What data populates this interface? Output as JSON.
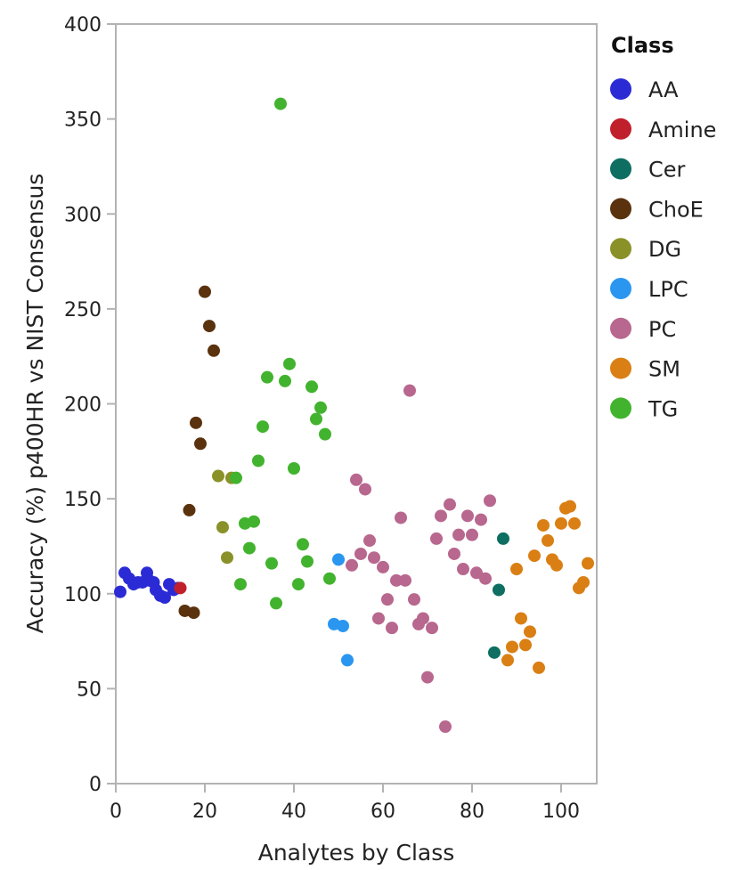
{
  "chart_data": {
    "type": "scatter",
    "title": "",
    "xlabel": "Analytes by Class",
    "ylabel": "Accuracy (%) p400HR vs NIST Consensus",
    "xlim": [
      0,
      108
    ],
    "ylim": [
      0,
      400
    ],
    "xticks": [
      0,
      20,
      40,
      60,
      80,
      100
    ],
    "yticks": [
      0,
      50,
      100,
      150,
      200,
      250,
      300,
      350,
      400
    ],
    "grid": false,
    "legend": {
      "title": "Class",
      "position": "right"
    },
    "series": [
      {
        "name": "AA",
        "color": "#2B2BD6",
        "points": [
          [
            1,
            101
          ],
          [
            2,
            111
          ],
          [
            3,
            108
          ],
          [
            4,
            105
          ],
          [
            5,
            106
          ],
          [
            6,
            106
          ],
          [
            7,
            111
          ],
          [
            7.5,
            107
          ],
          [
            8.5,
            106
          ],
          [
            9,
            102
          ],
          [
            10,
            99
          ],
          [
            11,
            98
          ],
          [
            12,
            105
          ],
          [
            13,
            102
          ],
          [
            14,
            103
          ]
        ]
      },
      {
        "name": "Amine",
        "color": "#C0202C",
        "points": [
          [
            14.5,
            103
          ]
        ]
      },
      {
        "name": "Cer",
        "color": "#0E6E62",
        "points": [
          [
            85,
            69
          ],
          [
            86,
            102
          ],
          [
            87,
            129
          ]
        ]
      },
      {
        "name": "ChoE",
        "color": "#5A320E",
        "points": [
          [
            15.5,
            91
          ],
          [
            16.5,
            144
          ],
          [
            17.5,
            90
          ],
          [
            18,
            190
          ],
          [
            19,
            179
          ],
          [
            20,
            259
          ],
          [
            21,
            241
          ],
          [
            22,
            228
          ]
        ]
      },
      {
        "name": "DG",
        "color": "#8A9128",
        "points": [
          [
            23,
            162
          ],
          [
            24,
            135
          ],
          [
            25,
            119
          ],
          [
            26,
            161
          ]
        ]
      },
      {
        "name": "LPC",
        "color": "#2A96F0",
        "points": [
          [
            49,
            84
          ],
          [
            50,
            118
          ],
          [
            51,
            83
          ],
          [
            52,
            65
          ]
        ]
      },
      {
        "name": "PC",
        "color": "#B8678E",
        "points": [
          [
            53,
            115
          ],
          [
            54,
            160
          ],
          [
            55,
            121
          ],
          [
            56,
            155
          ],
          [
            57,
            128
          ],
          [
            58,
            119
          ],
          [
            59,
            87
          ],
          [
            60,
            114
          ],
          [
            61,
            97
          ],
          [
            62,
            82
          ],
          [
            63,
            107
          ],
          [
            64,
            140
          ],
          [
            65,
            107
          ],
          [
            66,
            207
          ],
          [
            67,
            97
          ],
          [
            68,
            84
          ],
          [
            69,
            87
          ],
          [
            70,
            56
          ],
          [
            71,
            82
          ],
          [
            72,
            129
          ],
          [
            73,
            141
          ],
          [
            74,
            30
          ],
          [
            75,
            147
          ],
          [
            76,
            121
          ],
          [
            77,
            131
          ],
          [
            78,
            113
          ],
          [
            79,
            141
          ],
          [
            80,
            131
          ],
          [
            81,
            111
          ],
          [
            82,
            139
          ],
          [
            83,
            108
          ],
          [
            84,
            149
          ]
        ]
      },
      {
        "name": "SM",
        "color": "#DA7F14",
        "points": [
          [
            88,
            65
          ],
          [
            89,
            72
          ],
          [
            90,
            113
          ],
          [
            91,
            87
          ],
          [
            92,
            73
          ],
          [
            93,
            80
          ],
          [
            94,
            120
          ],
          [
            95,
            61
          ],
          [
            96,
            136
          ],
          [
            97,
            128
          ],
          [
            98,
            118
          ],
          [
            99,
            115
          ],
          [
            100,
            137
          ],
          [
            101,
            145
          ],
          [
            102,
            146
          ],
          [
            103,
            137
          ],
          [
            104,
            103
          ],
          [
            105,
            106
          ],
          [
            106,
            116
          ]
        ]
      },
      {
        "name": "TG",
        "color": "#42B32E",
        "points": [
          [
            27,
            161
          ],
          [
            28,
            105
          ],
          [
            29,
            137
          ],
          [
            30,
            124
          ],
          [
            31,
            138
          ],
          [
            32,
            170
          ],
          [
            33,
            188
          ],
          [
            34,
            214
          ],
          [
            35,
            116
          ],
          [
            36,
            95
          ],
          [
            37,
            358
          ],
          [
            38,
            212
          ],
          [
            39,
            221
          ],
          [
            40,
            166
          ],
          [
            41,
            105
          ],
          [
            42,
            126
          ],
          [
            43,
            117
          ],
          [
            44,
            209
          ],
          [
            45,
            192
          ],
          [
            46,
            198
          ],
          [
            47,
            184
          ],
          [
            48,
            108
          ]
        ]
      }
    ]
  }
}
